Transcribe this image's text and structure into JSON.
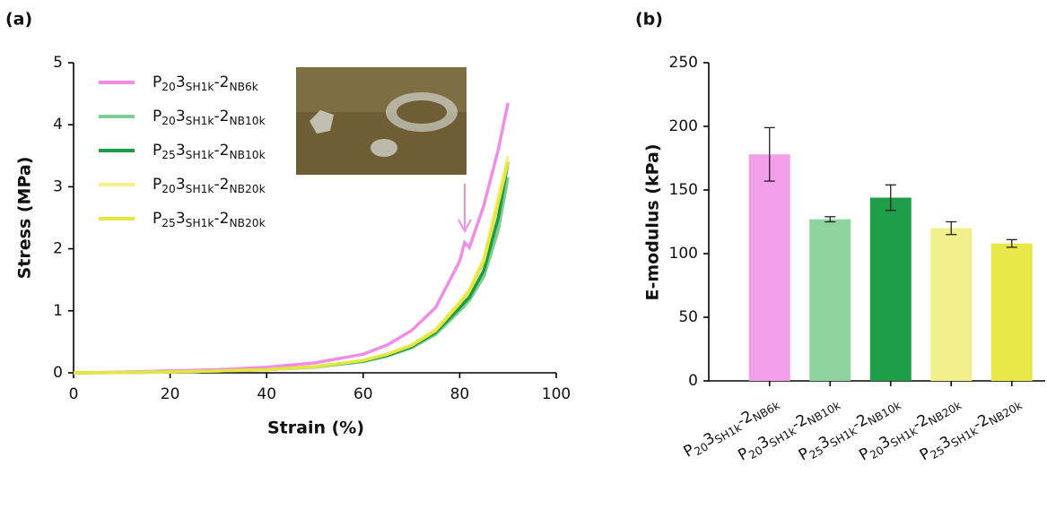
{
  "chart_data": [
    {
      "type": "line",
      "title": "(a)",
      "x_label": "Strain (%)",
      "y_label": "Stress (MPa)",
      "x": [
        0,
        10,
        20,
        30,
        40,
        50,
        60,
        65,
        70,
        75,
        80,
        81,
        82,
        85,
        88,
        90
      ],
      "xlim": [
        0,
        100
      ],
      "xticks": [
        0,
        20,
        40,
        60,
        80,
        100
      ],
      "ylim": [
        0,
        5
      ],
      "yticks": [
        0,
        1,
        2,
        3,
        4,
        5
      ],
      "series": [
        {
          "name": "P203SH1k-2NB6k",
          "color": "#f08ee6",
          "values": [
            0,
            0.01,
            0.03,
            0.05,
            0.09,
            0.16,
            0.3,
            0.45,
            0.68,
            1.05,
            1.8,
            2.1,
            2.02,
            2.7,
            3.6,
            4.35
          ]
        },
        {
          "name": "P203SH1k-2NB10k",
          "color": "#7fcf94",
          "values": [
            0,
            0.005,
            0.015,
            0.03,
            0.05,
            0.09,
            0.18,
            0.27,
            0.4,
            0.62,
            1.0,
            1.08,
            1.17,
            1.55,
            2.3,
            3.15
          ]
        },
        {
          "name": "P253SH1k-2NB10k",
          "color": "#1f9a45",
          "values": [
            0,
            0.005,
            0.015,
            0.03,
            0.05,
            0.1,
            0.19,
            0.28,
            0.42,
            0.65,
            1.05,
            1.14,
            1.22,
            1.65,
            2.5,
            3.4
          ]
        },
        {
          "name": "P203SH1k-2NB20k",
          "color": "#f4f08c",
          "values": [
            0,
            0.005,
            0.015,
            0.03,
            0.05,
            0.1,
            0.2,
            0.3,
            0.45,
            0.7,
            1.15,
            1.25,
            1.35,
            1.85,
            2.85,
            3.5
          ]
        },
        {
          "name": "P253SH1k-2NB20k",
          "color": "#e6e640",
          "values": [
            0,
            0.005,
            0.015,
            0.03,
            0.05,
            0.1,
            0.2,
            0.3,
            0.44,
            0.68,
            1.12,
            1.22,
            1.32,
            1.8,
            2.75,
            3.4
          ]
        }
      ]
    },
    {
      "type": "bar",
      "title": "(b)",
      "y_label": "E-modulus (kPa)",
      "categories": [
        "P203SH1k-2NB6k",
        "P203SH1k-2NB10k",
        "P253SH1k-2NB10k",
        "P203SH1k-2NB20k",
        "P253SH1k-2NB20k"
      ],
      "values": [
        178,
        127,
        144,
        120,
        108
      ],
      "errors": [
        21,
        2,
        10,
        5,
        3
      ],
      "colors": [
        "#f29ee8",
        "#8fd3a0",
        "#1e9e48",
        "#f2f08a",
        "#e8e84a"
      ],
      "ylim": [
        0,
        250
      ],
      "yticks": [
        0,
        50,
        100,
        150,
        200,
        250
      ]
    }
  ]
}
